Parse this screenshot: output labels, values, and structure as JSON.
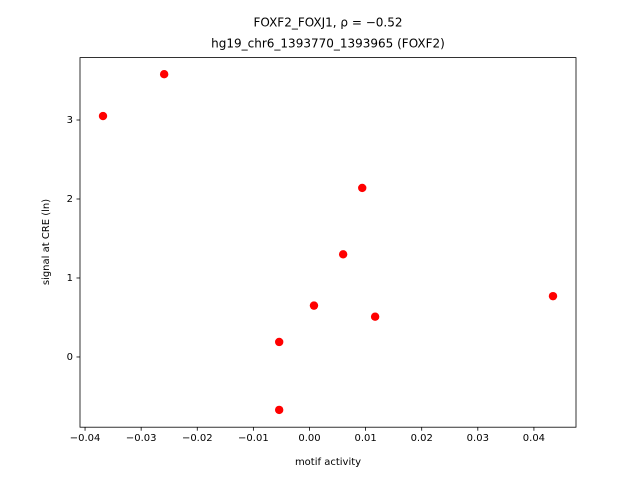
{
  "chart_data": {
    "type": "scatter",
    "title": "FOXF2_FOXJ1, ρ = −0.52",
    "subtitle": "hg19_chr6_1393770_1393965 (FOXF2)",
    "x_label": "motif activity",
    "y_label": "signal at CRE (ln)",
    "color": "#ff0000",
    "x": [
      -0.0368,
      -0.0259,
      0.0094,
      0.006,
      0.0008,
      0.0117,
      0.0434,
      -0.0054,
      -0.0054
    ],
    "values": [
      3.05,
      3.58,
      2.14,
      1.3,
      0.65,
      0.51,
      0.77,
      0.19,
      -0.67
    ],
    "xlim": [
      -0.0409,
      0.0475
    ],
    "ylim": [
      -0.889,
      3.79
    ],
    "xticks": [
      {
        "value": -0.04,
        "label": "−0.04"
      },
      {
        "value": -0.03,
        "label": "−0.03"
      },
      {
        "value": -0.02,
        "label": "−0.02"
      },
      {
        "value": -0.01,
        "label": "−0.01"
      },
      {
        "value": 0,
        "label": "0.00"
      },
      0.01,
      0.02,
      0.03,
      0.04
    ],
    "yticks": [
      0,
      1,
      2,
      3
    ]
  }
}
